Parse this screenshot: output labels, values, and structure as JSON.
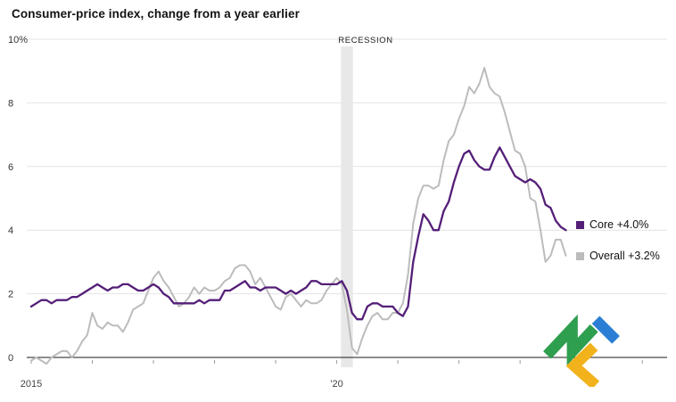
{
  "title": "Consumer-price index, change from a year earlier",
  "recession_label": "RECESSION",
  "legend": [
    {
      "key": "core",
      "label": "Core +4.0%",
      "color": "#541f78"
    },
    {
      "key": "overall",
      "label": "Overall +3.2%",
      "color": "#bcbcbc"
    }
  ],
  "watermark": "litefinance-logo",
  "chart_data": {
    "type": "line",
    "title": "Consumer-price index, change from a year earlier",
    "x_unit": "month",
    "x_start": {
      "year": 2015,
      "month": 1
    },
    "x_end": {
      "year": 2023,
      "month": 10
    },
    "x_axis_labels": [
      {
        "text": "2015",
        "month_index": 0
      },
      {
        "text": "'20",
        "month_index": 60
      }
    ],
    "ylim": [
      -0.6,
      10
    ],
    "yticks": [
      0,
      2,
      4,
      6,
      8,
      10
    ],
    "ytick_labels": [
      "0",
      "2",
      "4",
      "6",
      "8",
      "10%"
    ],
    "grid": true,
    "legend_position": "right",
    "recession": {
      "start_month_index": 61,
      "end_month_index": 63,
      "label": "RECESSION"
    },
    "series": [
      {
        "name": "Overall",
        "end_label": "Overall +3.2%",
        "color": "#bcbcbc",
        "stroke_width": 2,
        "values": [
          -0.1,
          0.0,
          -0.1,
          -0.2,
          0.0,
          0.1,
          0.2,
          0.2,
          0.0,
          0.2,
          0.5,
          0.7,
          1.4,
          1.0,
          0.9,
          1.1,
          1.0,
          1.0,
          0.8,
          1.1,
          1.5,
          1.6,
          1.7,
          2.1,
          2.5,
          2.7,
          2.4,
          2.2,
          1.9,
          1.6,
          1.7,
          1.9,
          2.2,
          2.0,
          2.2,
          2.1,
          2.1,
          2.2,
          2.4,
          2.5,
          2.8,
          2.9,
          2.9,
          2.7,
          2.3,
          2.5,
          2.2,
          1.9,
          1.6,
          1.5,
          1.9,
          2.0,
          1.8,
          1.6,
          1.8,
          1.7,
          1.7,
          1.8,
          2.1,
          2.3,
          2.5,
          2.3,
          1.5,
          0.3,
          0.1,
          0.6,
          1.0,
          1.3,
          1.4,
          1.2,
          1.2,
          1.4,
          1.4,
          1.7,
          2.6,
          4.2,
          5.0,
          5.4,
          5.4,
          5.3,
          5.4,
          6.2,
          6.8,
          7.0,
          7.5,
          7.9,
          8.5,
          8.3,
          8.6,
          9.1,
          8.5,
          8.3,
          8.2,
          7.7,
          7.1,
          6.5,
          6.4,
          6.0,
          5.0,
          4.9,
          4.0,
          3.0,
          3.2,
          3.7,
          3.7,
          3.2
        ]
      },
      {
        "name": "Core",
        "end_label": "Core +4.0%",
        "color": "#541f78",
        "stroke_width": 2.3,
        "values": [
          1.6,
          1.7,
          1.8,
          1.8,
          1.7,
          1.8,
          1.8,
          1.8,
          1.9,
          1.9,
          2.0,
          2.1,
          2.2,
          2.3,
          2.2,
          2.1,
          2.2,
          2.2,
          2.3,
          2.3,
          2.2,
          2.1,
          2.1,
          2.2,
          2.3,
          2.2,
          2.0,
          1.9,
          1.7,
          1.7,
          1.7,
          1.7,
          1.7,
          1.8,
          1.7,
          1.8,
          1.8,
          1.8,
          2.1,
          2.1,
          2.2,
          2.3,
          2.4,
          2.2,
          2.2,
          2.1,
          2.2,
          2.2,
          2.2,
          2.1,
          2.0,
          2.1,
          2.0,
          2.1,
          2.2,
          2.4,
          2.4,
          2.3,
          2.3,
          2.3,
          2.3,
          2.4,
          2.1,
          1.4,
          1.2,
          1.2,
          1.6,
          1.7,
          1.7,
          1.6,
          1.6,
          1.6,
          1.4,
          1.3,
          1.6,
          3.0,
          3.8,
          4.5,
          4.3,
          4.0,
          4.0,
          4.6,
          4.9,
          5.5,
          6.0,
          6.4,
          6.5,
          6.2,
          6.0,
          5.9,
          5.9,
          6.3,
          6.6,
          6.3,
          6.0,
          5.7,
          5.6,
          5.5,
          5.6,
          5.5,
          5.3,
          4.8,
          4.7,
          4.3,
          4.1,
          4.0
        ]
      }
    ],
    "colors": {
      "grid": "#e4e4e4",
      "zero_axis": "#1a1a1a",
      "recession_band": "#e7e7e7",
      "logo_green": "#2e9e4f",
      "logo_blue": "#2a7fd4",
      "logo_yellow": "#f2b21c"
    }
  }
}
